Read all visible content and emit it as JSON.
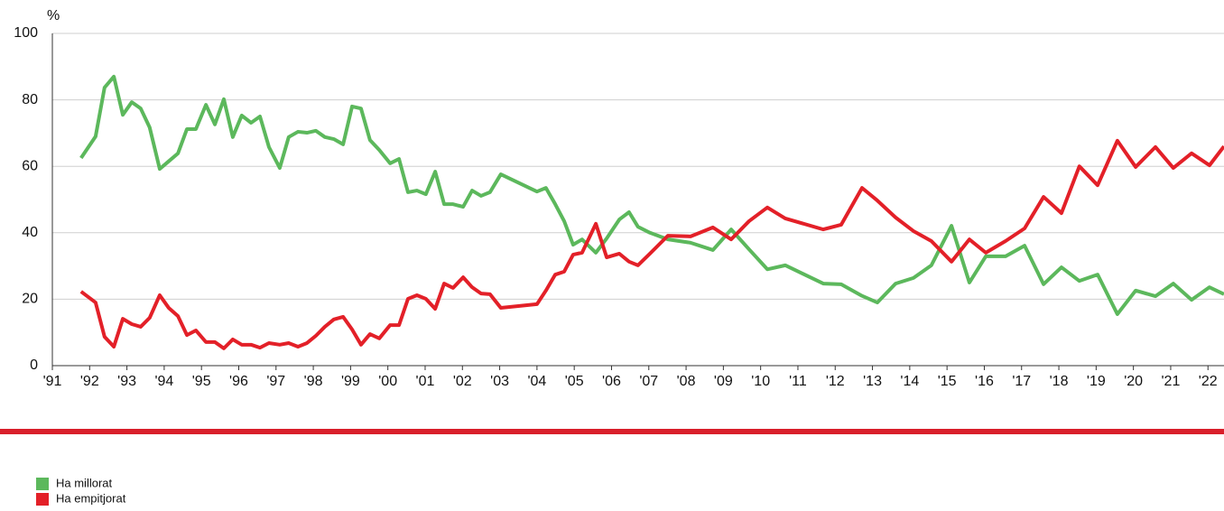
{
  "chart_data": {
    "type": "line",
    "y_label": "%",
    "x": [
      1991.77,
      1992.16,
      1992.4,
      1992.65,
      1992.89,
      1993.13,
      1993.37,
      1993.61,
      1993.88,
      1994.12,
      1994.37,
      1994.61,
      1994.85,
      1995.12,
      1995.36,
      1995.6,
      1995.84,
      1996.08,
      1996.33,
      1996.57,
      1996.81,
      1997.1,
      1997.34,
      1997.59,
      1997.83,
      1998.07,
      1998.31,
      1998.55,
      1998.8,
      1999.04,
      1999.28,
      1999.52,
      1999.77,
      2000.06,
      2000.3,
      2000.54,
      2000.78,
      2001.02,
      2001.27,
      2001.51,
      2001.75,
      2002.02,
      2002.26,
      2002.5,
      2002.74,
      2003.03,
      2004.0,
      2004.24,
      2004.49,
      2004.73,
      2004.97,
      2005.21,
      2005.58,
      2005.87,
      2006.21,
      2006.47,
      2006.71,
      2007.03,
      2007.51,
      2008.12,
      2008.72,
      2009.21,
      2009.69,
      2010.18,
      2010.66,
      2011.68,
      2012.16,
      2012.72,
      2013.13,
      2013.62,
      2014.1,
      2014.58,
      2015.12,
      2015.6,
      2016.04,
      2016.57,
      2017.08,
      2017.59,
      2018.07,
      2018.55,
      2019.04,
      2019.57,
      2020.06,
      2020.59,
      2021.07,
      2021.56,
      2022.04,
      2022.43
    ],
    "series": [
      {
        "name": "Ha millorat",
        "color": "#5cb85c",
        "values": [
          62.5,
          69,
          83.7,
          87,
          75.5,
          79.3,
          77.4,
          71.7,
          59.2,
          61.5,
          63.9,
          71.2,
          71.2,
          78.5,
          72.6,
          80.2,
          68.8,
          75.3,
          73.1,
          75,
          65.8,
          59.5,
          68.8,
          70.4,
          70.1,
          70.7,
          68.8,
          68.2,
          66.6,
          78,
          77.4,
          67.9,
          64.9,
          60.9,
          62.2,
          52.2,
          52.7,
          51.6,
          58.4,
          48.6,
          48.6,
          47.8,
          52.7,
          51.1,
          52.2,
          57.6,
          52.4,
          53.5,
          48.6,
          43.5,
          36.4,
          38,
          34,
          38.3,
          44,
          46.2,
          41.8,
          40,
          38,
          37,
          34.8,
          41,
          35,
          29,
          30.2,
          24.7,
          24.5,
          21,
          19,
          24.7,
          26.4,
          30.2,
          42.1,
          25,
          32.9,
          32.9,
          36.1,
          24.5,
          29.6,
          25.5,
          27.4,
          15.5,
          22.6,
          20.9,
          24.7,
          19.8,
          23.6,
          21.5
        ]
      },
      {
        "name": "Ha empitjorat",
        "color": "#e32028",
        "values": [
          22.3,
          19,
          8.7,
          5.7,
          14.1,
          12.5,
          11.7,
          14.4,
          21.2,
          17.4,
          14.9,
          9.2,
          10.6,
          7.1,
          7.1,
          5.2,
          7.9,
          6.3,
          6.3,
          5.4,
          6.8,
          6.3,
          6.8,
          5.7,
          6.8,
          9,
          11.7,
          13.9,
          14.7,
          10.9,
          6.3,
          9.5,
          8.2,
          12.2,
          12.2,
          20.1,
          21.2,
          20.1,
          17.1,
          24.7,
          23.4,
          26.6,
          23.6,
          21.7,
          21.5,
          17.4,
          18.5,
          22.6,
          27.4,
          28.3,
          33.4,
          34,
          42.7,
          32.6,
          33.7,
          31.3,
          30.2,
          33.7,
          39.1,
          38.9,
          41.6,
          38,
          43.5,
          47.6,
          44.3,
          41,
          42.4,
          53.5,
          49.7,
          44.6,
          40.5,
          37.5,
          31.3,
          38,
          34,
          37.5,
          41.3,
          50.8,
          45.9,
          60,
          54.3,
          67.7,
          59.8,
          65.8,
          59.5,
          63.9,
          60.3,
          66
        ]
      }
    ],
    "xlim": [
      1991,
      2022.43
    ],
    "ylim": [
      0,
      100
    ],
    "xticks": [
      {
        "value": 1991,
        "label": "'91"
      },
      {
        "value": 1992,
        "label": "'92"
      },
      {
        "value": 1993,
        "label": "'93"
      },
      {
        "value": 1994,
        "label": "'94"
      },
      {
        "value": 1995,
        "label": "'95"
      },
      {
        "value": 1996,
        "label": "'96"
      },
      {
        "value": 1997,
        "label": "'97"
      },
      {
        "value": 1998,
        "label": "'98"
      },
      {
        "value": 1999,
        "label": "'99"
      },
      {
        "value": 2000,
        "label": "'00"
      },
      {
        "value": 2001,
        "label": "'01"
      },
      {
        "value": 2002,
        "label": "'02"
      },
      {
        "value": 2003,
        "label": "'03"
      },
      {
        "value": 2004,
        "label": "'04"
      },
      {
        "value": 2005,
        "label": "'05"
      },
      {
        "value": 2006,
        "label": "'06"
      },
      {
        "value": 2007,
        "label": "'07"
      },
      {
        "value": 2008,
        "label": "'08"
      },
      {
        "value": 2009,
        "label": "'09"
      },
      {
        "value": 2010,
        "label": "'10"
      },
      {
        "value": 2011,
        "label": "'11"
      },
      {
        "value": 2012,
        "label": "'12"
      },
      {
        "value": 2013,
        "label": "'13"
      },
      {
        "value": 2014,
        "label": "'14"
      },
      {
        "value": 2015,
        "label": "'15"
      },
      {
        "value": 2016,
        "label": "'16"
      },
      {
        "value": 2017,
        "label": "'17"
      },
      {
        "value": 2018,
        "label": "'18"
      },
      {
        "value": 2019,
        "label": "'19"
      },
      {
        "value": 2020,
        "label": "'20"
      },
      {
        "value": 2021,
        "label": "'21"
      },
      {
        "value": 2022,
        "label": "'22"
      }
    ],
    "yticks": [
      0,
      20,
      40,
      60,
      80,
      100
    ],
    "grid": true
  }
}
